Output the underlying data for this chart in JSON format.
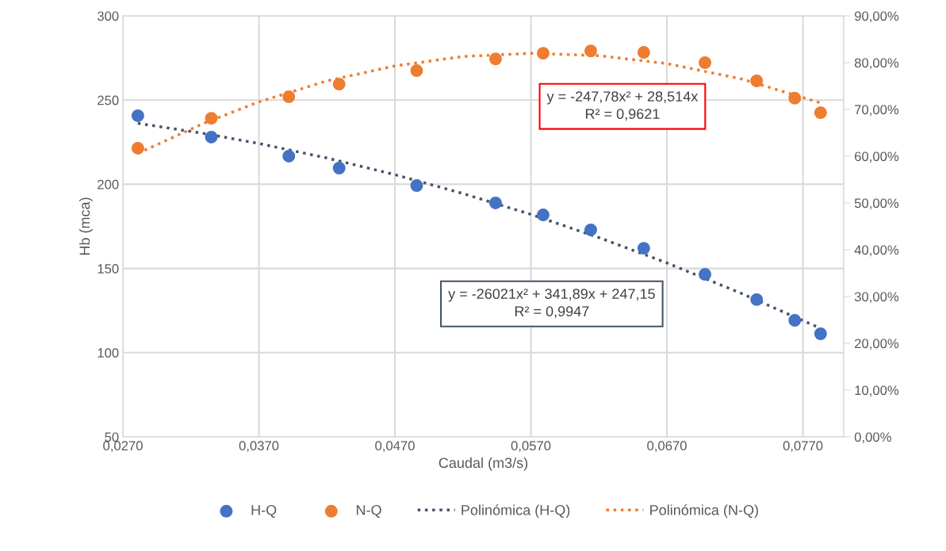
{
  "chart_data": {
    "type": "scatter",
    "xlabel": "Caudal (m3/s)",
    "ylabel": "Hb (mca)",
    "xlim": [
      0.027,
      0.08
    ],
    "xticks": [
      {
        "value": 0.027,
        "label": "0,0270"
      },
      {
        "value": 0.037,
        "label": "0,0370"
      },
      {
        "value": 0.047,
        "label": "0,0470"
      },
      {
        "value": 0.057,
        "label": "0,0570"
      },
      {
        "value": 0.067,
        "label": "0,0670"
      },
      {
        "value": 0.077,
        "label": "0,0770"
      }
    ],
    "ylim": [
      50,
      300
    ],
    "yticks": [
      50,
      100,
      150,
      200,
      250,
      300
    ],
    "y2lim": [
      0,
      90
    ],
    "y2ticks": [
      {
        "value": 0,
        "label": "0,00%"
      },
      {
        "value": 10,
        "label": "10,00%"
      },
      {
        "value": 20,
        "label": "20,00%"
      },
      {
        "value": 30,
        "label": "30,00%"
      },
      {
        "value": 40,
        "label": "40,00%"
      },
      {
        "value": 50,
        "label": "50,00%"
      },
      {
        "value": 60,
        "label": "60,00%"
      },
      {
        "value": 70,
        "label": "70,00%"
      },
      {
        "value": 80,
        "label": "80,00%"
      },
      {
        "value": 90,
        "label": "90,00%"
      }
    ],
    "grid": true,
    "legend": "bottom",
    "series": [
      {
        "name": "H-Q",
        "marker": "circle",
        "color": "#4472c4",
        "x": [
          0.0281,
          0.0335,
          0.0392,
          0.0429,
          0.0486,
          0.0544,
          0.0579,
          0.0614,
          0.0653,
          0.0698,
          0.0736,
          0.0764,
          0.0783
        ],
        "values": [
          240.7,
          228.0,
          216.7,
          209.6,
          199.2,
          188.9,
          181.8,
          172.9,
          162.0,
          146.5,
          131.5,
          119.2,
          111.2
        ]
      },
      {
        "name": "N-Q",
        "marker": "circle",
        "axis": "y2",
        "color": "#ed7d31",
        "x": [
          0.0281,
          0.0335,
          0.0392,
          0.0429,
          0.0486,
          0.0544,
          0.0579,
          0.0614,
          0.0653,
          0.0698,
          0.0736,
          0.0764,
          0.0783
        ],
        "values": [
          61.7,
          68.1,
          72.7,
          75.4,
          78.3,
          80.8,
          82.0,
          82.5,
          82.2,
          80.0,
          76.1,
          72.4,
          69.3
        ]
      },
      {
        "name": "Polinómica (H-Q)",
        "type": "line",
        "marker": "none",
        "line_style": "dotted",
        "color": "#44546a",
        "x": [
          0.0281,
          0.033,
          0.037,
          0.042,
          0.047,
          0.052,
          0.057,
          0.062,
          0.067,
          0.0725,
          0.0783
        ],
        "values": [
          236.2,
          230.1,
          224.2,
          215.6,
          205.7,
          194.5,
          182.1,
          168.3,
          153.3,
          135.1,
          114.4
        ]
      },
      {
        "name": "Polinómica (N-Q)",
        "type": "line",
        "marker": "none",
        "line_style": "dotted",
        "axis": "y2",
        "color": "#ed7d31",
        "x": [
          0.0281,
          0.033,
          0.037,
          0.042,
          0.047,
          0.052,
          0.057,
          0.062,
          0.067,
          0.0725,
          0.0783
        ],
        "values": [
          60.6,
          67.1,
          71.6,
          76.1,
          79.3,
          81.3,
          82.0,
          81.5,
          79.8,
          76.5,
          71.4
        ]
      }
    ],
    "annotations": [
      "y = -247,78x² + 28,514x\nR² = 0,9621",
      "y = -26021x² + 341,89x + 247,15\nR² = 0,9947"
    ]
  }
}
